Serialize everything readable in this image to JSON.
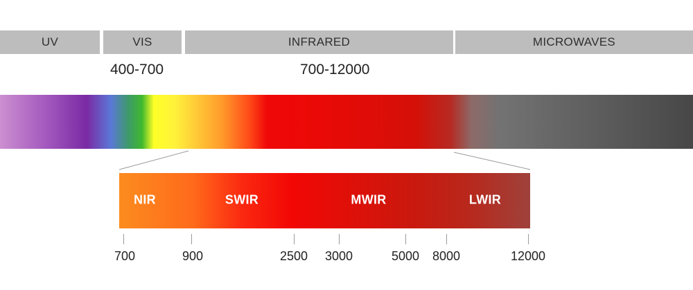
{
  "bands": [
    {
      "id": "uv",
      "label": "UV"
    },
    {
      "id": "vis",
      "label": "VIS"
    },
    {
      "id": "infrared",
      "label": "INFRARED"
    },
    {
      "id": "microwaves",
      "label": "MICROWAVES"
    }
  ],
  "ranges": {
    "vis": "400-700",
    "infrared": "700-12000"
  },
  "infrared_subbands": [
    {
      "id": "nir",
      "label": "NIR"
    },
    {
      "id": "swir",
      "label": "SWIR"
    },
    {
      "id": "mwir",
      "label": "MWIR"
    },
    {
      "id": "lwir",
      "label": "LWIR"
    }
  ],
  "scale_ticks": [
    "700",
    "900",
    "2500",
    "3000",
    "5000",
    "8000",
    "12000"
  ],
  "colors": {
    "band_bg": "#bdbdbd",
    "band_text": "#2f2f2f",
    "connector_line": "#9a9a9a"
  }
}
